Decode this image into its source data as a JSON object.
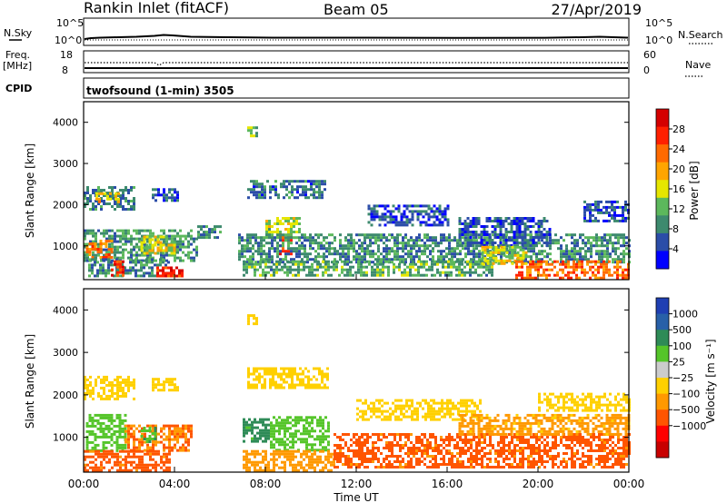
{
  "header": {
    "site": "Rankin Inlet (fitACF)",
    "beam": "Beam 05",
    "date": "27/Apr/2019"
  },
  "summary_panel": {
    "nsky_label": "N.Sky",
    "nsky_ticks": [
      "10^5",
      "10^0"
    ],
    "nsearch_label": "N.Search",
    "nsearch_ticks": [
      "10^5",
      "10^0"
    ],
    "freq_label_1": "Freq.",
    "freq_label_2": "[MHz]",
    "freq_ticks": [
      "18",
      "8"
    ],
    "nave_label": "Nave",
    "nave_ticks": [
      "60",
      "0"
    ],
    "cpid_label": "CPID",
    "cpid_text": "twofsound (1-min) 3505"
  },
  "x_axis": {
    "ticks": [
      "00:00",
      "04:00",
      "08:00",
      "12:00",
      "16:00",
      "20:00",
      "00:00"
    ],
    "label": "Time UT"
  },
  "colors": {
    "power_scale": [
      "#0000ff",
      "#2b4da8",
      "#3d8a6e",
      "#5cb85c",
      "#e6e600",
      "#ffa500",
      "#ff6a00",
      "#ff2000",
      "#d40000"
    ],
    "velocity_scale": [
      "#1f3fb3",
      "#2860a8",
      "#2e8b57",
      "#55c52a",
      "#cccccc",
      "#ffd000",
      "#ff9900",
      "#ff5500",
      "#ff0000",
      "#c80000"
    ]
  },
  "chart_data": [
    {
      "type": "heatmap",
      "name": "power",
      "ylabel": "Slant Range [km]",
      "yticks": [
        "4000",
        "3000",
        "2000",
        "1000"
      ],
      "ylim": [
        180,
        4500
      ],
      "xlim": [
        0,
        24
      ],
      "colorbar_label": "Power [dB]",
      "colorbar_ticks": [
        "28",
        "24",
        "20",
        "16",
        "12",
        "8",
        "4"
      ],
      "colorbar_range": [
        0,
        32
      ],
      "regions": [
        {
          "x": [
            0.0,
            2.2
          ],
          "y": [
            1900,
            2450
          ],
          "v": 8
        },
        {
          "x": [
            0.4,
            1.5
          ],
          "y": [
            2050,
            2300
          ],
          "v": 18
        },
        {
          "x": [
            3.0,
            4.2
          ],
          "y": [
            2100,
            2400
          ],
          "v": 6
        },
        {
          "x": [
            5.0,
            6.0
          ],
          "y": [
            1200,
            1500
          ],
          "v": 8
        },
        {
          "x": [
            0.0,
            5.0
          ],
          "y": [
            650,
            1400
          ],
          "v": 10
        },
        {
          "x": [
            0.1,
            1.2
          ],
          "y": [
            750,
            1150
          ],
          "v": 22
        },
        {
          "x": [
            2.5,
            4.0
          ],
          "y": [
            800,
            1250
          ],
          "v": 16
        },
        {
          "x": [
            0.2,
            3.8
          ],
          "y": [
            300,
            700
          ],
          "v": 9
        },
        {
          "x": [
            1.2,
            1.8
          ],
          "y": [
            300,
            650
          ],
          "v": 26
        },
        {
          "x": [
            3.2,
            4.3
          ],
          "y": [
            250,
            500
          ],
          "v": 27
        },
        {
          "x": [
            7.2,
            7.6
          ],
          "y": [
            3700,
            3900
          ],
          "v": 12
        },
        {
          "x": [
            7.2,
            10.6
          ],
          "y": [
            2200,
            2600
          ],
          "v": 7
        },
        {
          "x": [
            8.0,
            9.5
          ],
          "y": [
            1200,
            1700
          ],
          "v": 14
        },
        {
          "x": [
            8.6,
            9.2
          ],
          "y": [
            800,
            1300
          ],
          "v": 27
        },
        {
          "x": [
            6.8,
            24.0
          ],
          "y": [
            600,
            1300
          ],
          "v": 9
        },
        {
          "x": [
            7.0,
            18.0
          ],
          "y": [
            300,
            650
          ],
          "v": 11
        },
        {
          "x": [
            12.5,
            16.0
          ],
          "y": [
            1500,
            2000
          ],
          "v": 5
        },
        {
          "x": [
            16.5,
            20.5
          ],
          "y": [
            1000,
            1700
          ],
          "v": 6
        },
        {
          "x": [
            17.5,
            19.5
          ],
          "y": [
            600,
            1000
          ],
          "v": 16
        },
        {
          "x": [
            19.0,
            24.0
          ],
          "y": [
            200,
            650
          ],
          "v": 23
        },
        {
          "x": [
            22.0,
            24.0
          ],
          "y": [
            1600,
            2100
          ],
          "v": 6
        }
      ]
    },
    {
      "type": "heatmap",
      "name": "velocity",
      "ylabel": "Slant Range [km]",
      "yticks": [
        "4000",
        "3000",
        "2000",
        "1000"
      ],
      "ylim": [
        180,
        4500
      ],
      "xlim": [
        0,
        24
      ],
      "colorbar_label": "Velocity [m s⁻¹]",
      "colorbar_ticks": [
        "1000",
        "500",
        "100",
        "25",
        "−25",
        "−100",
        "−500",
        "−1000"
      ],
      "regions": [
        {
          "x": [
            0.0,
            2.2
          ],
          "y": [
            1900,
            2450
          ],
          "v": 0
        },
        {
          "x": [
            3.0,
            4.2
          ],
          "y": [
            2100,
            2400
          ],
          "v": 0
        },
        {
          "x": [
            0.1,
            1.8
          ],
          "y": [
            700,
            1550
          ],
          "v": 300
        },
        {
          "x": [
            1.8,
            4.8
          ],
          "y": [
            700,
            1300
          ],
          "v": -100
        },
        {
          "x": [
            0.0,
            3.8
          ],
          "y": [
            200,
            700
          ],
          "v": -150
        },
        {
          "x": [
            2.5,
            3.2
          ],
          "y": [
            900,
            1250
          ],
          "v": 400
        },
        {
          "x": [
            7.2,
            7.6
          ],
          "y": [
            3700,
            3900
          ],
          "v": 0
        },
        {
          "x": [
            7.2,
            10.8
          ],
          "y": [
            2200,
            2650
          ],
          "v": 0
        },
        {
          "x": [
            7.0,
            8.2
          ],
          "y": [
            900,
            1450
          ],
          "v": 700
        },
        {
          "x": [
            8.2,
            10.8
          ],
          "y": [
            700,
            1500
          ],
          "v": 200
        },
        {
          "x": [
            7.0,
            11.0
          ],
          "y": [
            250,
            700
          ],
          "v": -60
        },
        {
          "x": [
            11.0,
            24.0
          ],
          "y": [
            300,
            1100
          ],
          "v": -150
        },
        {
          "x": [
            12.0,
            17.5
          ],
          "y": [
            1400,
            1900
          ],
          "v": 0
        },
        {
          "x": [
            16.5,
            24.0
          ],
          "y": [
            1100,
            1550
          ],
          "v": -40
        },
        {
          "x": [
            20.0,
            24.0
          ],
          "y": [
            1650,
            2050
          ],
          "v": 0
        }
      ]
    }
  ]
}
